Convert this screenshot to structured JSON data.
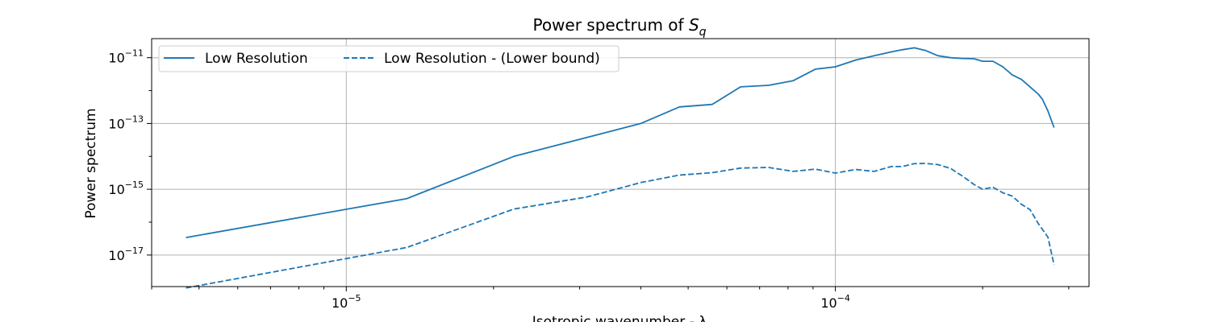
{
  "chart_data": {
    "type": "line",
    "title": "Power spectrum of S_q",
    "title_parts": {
      "text": "Power spectrum of ",
      "symbol": "S",
      "subscript": "q"
    },
    "xlabel": "Isotropic wavenumber - λ",
    "ylabel": "Power spectrum",
    "xscale": "log",
    "yscale": "log",
    "xlim": [
      4e-06,
      0.00033
    ],
    "ylim": [
      1.1e-18,
      3.8e-11
    ],
    "grid": true,
    "legend_position": "top-left",
    "x_ticks": [
      {
        "base": "10",
        "exp": "−5",
        "value": 1e-05
      },
      {
        "base": "10",
        "exp": "−4",
        "value": 0.0001
      }
    ],
    "y_ticks": [
      {
        "base": "10",
        "exp": "−11",
        "value": 1e-11
      },
      {
        "base": "10",
        "exp": "−13",
        "value": 1e-13
      },
      {
        "base": "10",
        "exp": "−15",
        "value": 1e-15
      },
      {
        "base": "10",
        "exp": "−17",
        "value": 1e-17
      }
    ],
    "series": [
      {
        "name": "Low Resolution",
        "style": "solid",
        "color": "#1f77b4",
        "points": [
          [
            4.7e-06,
            3.4e-17
          ],
          [
            1.33e-05,
            5.2e-16
          ],
          [
            2.2e-05,
            1e-14
          ],
          [
            4e-05,
            1e-13
          ],
          [
            4.8e-05,
            3.2e-13
          ],
          [
            5.6e-05,
            3.8e-13
          ],
          [
            6.4e-05,
            1.3e-12
          ],
          [
            7.3e-05,
            1.45e-12
          ],
          [
            8.2e-05,
            2e-12
          ],
          [
            9.1e-05,
            4.5e-12
          ],
          [
            0.0001,
            5.3e-12
          ],
          [
            0.00011,
            8.5e-12
          ],
          [
            0.00012,
            1.15e-11
          ],
          [
            0.00013,
            1.5e-11
          ],
          [
            0.000137,
            1.75e-11
          ],
          [
            0.000145,
            2e-11
          ],
          [
            0.000153,
            1.65e-11
          ],
          [
            0.000162,
            1.15e-11
          ],
          [
            0.000172,
            1e-11
          ],
          [
            0.000182,
            9.5e-12
          ],
          [
            0.000192,
            9.3e-12
          ],
          [
            0.0002,
            7.8e-12
          ],
          [
            0.00021,
            7.8e-12
          ],
          [
            0.00022,
            5.3e-12
          ],
          [
            0.00023,
            3e-12
          ],
          [
            0.00024,
            2.2e-12
          ],
          [
            0.00025,
            1.3e-12
          ],
          [
            0.00026,
            7.8e-13
          ],
          [
            0.000265,
            5.5e-13
          ],
          [
            0.000272,
            2.4e-13
          ],
          [
            0.00028,
            7.5e-14
          ]
        ]
      },
      {
        "name": "Low Resolution - (Lower bound)",
        "style": "dashed",
        "color": "#1f77b4",
        "points": [
          [
            4.7e-06,
            1e-18
          ],
          [
            1.33e-05,
            1.7e-17
          ],
          [
            2.2e-05,
            2.5e-16
          ],
          [
            3.1e-05,
            5.8e-16
          ],
          [
            4e-05,
            1.6e-15
          ],
          [
            4.8e-05,
            2.7e-15
          ],
          [
            5.6e-05,
            3.2e-15
          ],
          [
            6.4e-05,
            4.4e-15
          ],
          [
            7.3e-05,
            4.6e-15
          ],
          [
            8.2e-05,
            3.5e-15
          ],
          [
            9.1e-05,
            4.1e-15
          ],
          [
            0.0001,
            3.1e-15
          ],
          [
            0.00011,
            4e-15
          ],
          [
            0.00012,
            3.5e-15
          ],
          [
            0.00013,
            4.9e-15
          ],
          [
            0.000137,
            4.9e-15
          ],
          [
            0.000145,
            6e-15
          ],
          [
            0.000153,
            6.1e-15
          ],
          [
            0.000162,
            5.6e-15
          ],
          [
            0.000172,
            4.3e-15
          ],
          [
            0.000182,
            2.5e-15
          ],
          [
            0.000192,
            1.4e-15
          ],
          [
            0.0002,
            1e-15
          ],
          [
            0.00021,
            1.15e-15
          ],
          [
            0.00022,
            7.8e-16
          ],
          [
            0.00023,
            6.2e-16
          ],
          [
            0.00024,
            3.5e-16
          ],
          [
            0.00025,
            2.4e-16
          ],
          [
            0.00026,
            9e-17
          ],
          [
            0.000272,
            3.5e-17
          ],
          [
            0.00028,
            5e-18
          ]
        ]
      }
    ]
  }
}
